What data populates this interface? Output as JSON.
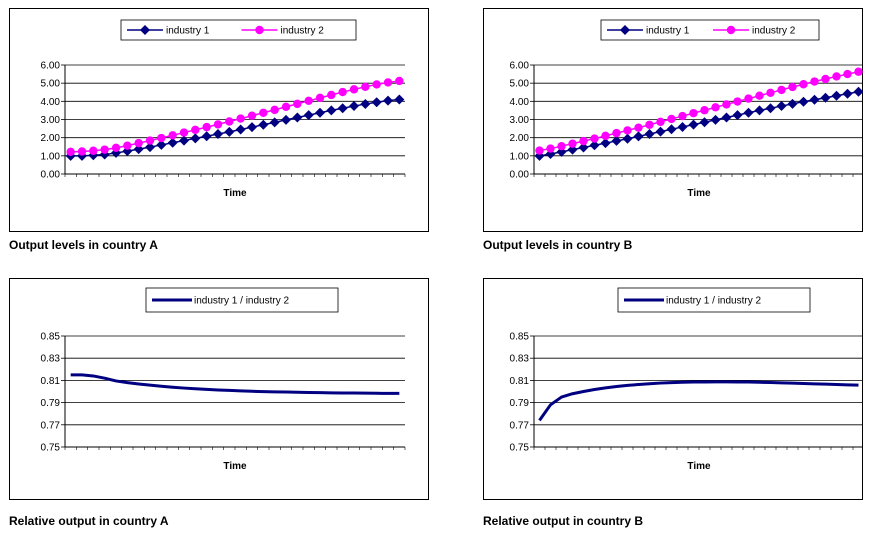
{
  "colors": {
    "series_1": "#000080",
    "series_2": "#ff00ff",
    "grid": "#000000",
    "frame": "#000000"
  },
  "chart_data": [
    {
      "type": "line",
      "panel": "top-left",
      "caption": "Output levels in country A",
      "xlabel": "Time",
      "ylabel": "",
      "ylim": [
        0,
        6
      ],
      "yticks": [
        "0.00",
        "1.00",
        "2.00",
        "3.00",
        "4.00",
        "5.00",
        "6.00"
      ],
      "grid": true,
      "legend": "top-center",
      "x": [
        1,
        2,
        3,
        4,
        5,
        6,
        7,
        8,
        9,
        10,
        11,
        12,
        13,
        14,
        15,
        16,
        17,
        18,
        19,
        20,
        21,
        22,
        23,
        24,
        25,
        26,
        27,
        28,
        29,
        30
      ],
      "series": [
        {
          "name": "industry 1",
          "marker": "diamond",
          "color": "#000080",
          "values": [
            1.0,
            1.0,
            1.03,
            1.07,
            1.16,
            1.26,
            1.37,
            1.48,
            1.6,
            1.72,
            1.84,
            1.96,
            2.08,
            2.2,
            2.32,
            2.45,
            2.58,
            2.71,
            2.84,
            2.98,
            3.11,
            3.24,
            3.37,
            3.5,
            3.62,
            3.74,
            3.85,
            3.95,
            4.04,
            4.1
          ]
        },
        {
          "name": "industry 2",
          "marker": "circle",
          "color": "#ff00ff",
          "values": [
            1.22,
            1.24,
            1.28,
            1.34,
            1.44,
            1.56,
            1.7,
            1.84,
            1.98,
            2.13,
            2.28,
            2.43,
            2.58,
            2.73,
            2.89,
            3.05,
            3.21,
            3.37,
            3.53,
            3.7,
            3.86,
            4.03,
            4.19,
            4.35,
            4.51,
            4.66,
            4.8,
            4.93,
            5.04,
            5.12
          ]
        }
      ]
    },
    {
      "type": "line",
      "panel": "top-right",
      "caption": "Output levels in country B",
      "xlabel": "Time",
      "ylabel": "",
      "ylim": [
        0,
        6
      ],
      "yticks": [
        "0.00",
        "1.00",
        "2.00",
        "3.00",
        "4.00",
        "5.00",
        "6.00"
      ],
      "grid": true,
      "legend": "top-center",
      "x": [
        1,
        2,
        3,
        4,
        5,
        6,
        7,
        8,
        9,
        10,
        11,
        12,
        13,
        14,
        15,
        16,
        17,
        18,
        19,
        20,
        21,
        22,
        23,
        24,
        25,
        26,
        27,
        28,
        29,
        30
      ],
      "series": [
        {
          "name": "industry 1",
          "marker": "diamond",
          "color": "#000080",
          "values": [
            1.0,
            1.1,
            1.22,
            1.34,
            1.46,
            1.58,
            1.7,
            1.82,
            1.94,
            2.07,
            2.2,
            2.33,
            2.46,
            2.59,
            2.72,
            2.85,
            2.98,
            3.11,
            3.24,
            3.37,
            3.5,
            3.62,
            3.74,
            3.86,
            3.98,
            4.09,
            4.2,
            4.31,
            4.42,
            4.53
          ]
        },
        {
          "name": "industry 2",
          "marker": "circle",
          "color": "#ff00ff",
          "values": [
            1.29,
            1.4,
            1.53,
            1.67,
            1.81,
            1.95,
            2.1,
            2.25,
            2.4,
            2.55,
            2.71,
            2.87,
            3.03,
            3.19,
            3.35,
            3.51,
            3.67,
            3.83,
            3.99,
            4.15,
            4.31,
            4.47,
            4.63,
            4.79,
            4.94,
            5.09,
            5.23,
            5.37,
            5.5,
            5.63
          ]
        }
      ]
    },
    {
      "type": "line",
      "panel": "bottom-left",
      "caption": "Relative output in country A",
      "xlabel": "Time",
      "ylabel": "",
      "ylim": [
        0.75,
        0.85
      ],
      "yticks": [
        "0.75",
        "0.77",
        "0.79",
        "0.81",
        "0.83",
        "0.85"
      ],
      "grid": true,
      "legend": "top-center",
      "x": [
        1,
        2,
        3,
        4,
        5,
        6,
        7,
        8,
        9,
        10,
        11,
        12,
        13,
        14,
        15,
        16,
        17,
        18,
        19,
        20,
        21,
        22,
        23,
        24,
        25,
        26,
        27,
        28,
        29,
        30
      ],
      "series": [
        {
          "name": "industry 1 / industry 2",
          "marker": "none",
          "color": "#000080",
          "values": [
            0.815,
            0.815,
            0.814,
            0.812,
            0.8095,
            0.808,
            0.8068,
            0.8057,
            0.8047,
            0.8038,
            0.8031,
            0.8025,
            0.8019,
            0.8014,
            0.801,
            0.8006,
            0.8002,
            0.7999,
            0.7997,
            0.7995,
            0.7993,
            0.7991,
            0.799,
            0.7988,
            0.7987,
            0.7986,
            0.7985,
            0.7984,
            0.7983,
            0.7983
          ]
        }
      ]
    },
    {
      "type": "line",
      "panel": "bottom-right",
      "caption": "Relative output in country B",
      "xlabel": "Time",
      "ylabel": "",
      "ylim": [
        0.75,
        0.85
      ],
      "yticks": [
        "0.75",
        "0.77",
        "0.79",
        "0.81",
        "0.83",
        "0.85"
      ],
      "grid": true,
      "legend": "top-center",
      "x": [
        1,
        2,
        3,
        4,
        5,
        6,
        7,
        8,
        9,
        10,
        11,
        12,
        13,
        14,
        15,
        16,
        17,
        18,
        19,
        20,
        21,
        22,
        23,
        24,
        25,
        26,
        27,
        28,
        29,
        30
      ],
      "series": [
        {
          "name": "industry 1 / industry 2",
          "marker": "none",
          "color": "#000080",
          "values": [
            0.774,
            0.788,
            0.795,
            0.798,
            0.8,
            0.8018,
            0.8033,
            0.8045,
            0.8055,
            0.8063,
            0.807,
            0.8076,
            0.808,
            0.8083,
            0.8085,
            0.8086,
            0.8087,
            0.8087,
            0.8086,
            0.8085,
            0.8083,
            0.8081,
            0.8078,
            0.8075,
            0.8072,
            0.8069,
            0.8066,
            0.8063,
            0.806,
            0.8057
          ]
        }
      ]
    }
  ]
}
